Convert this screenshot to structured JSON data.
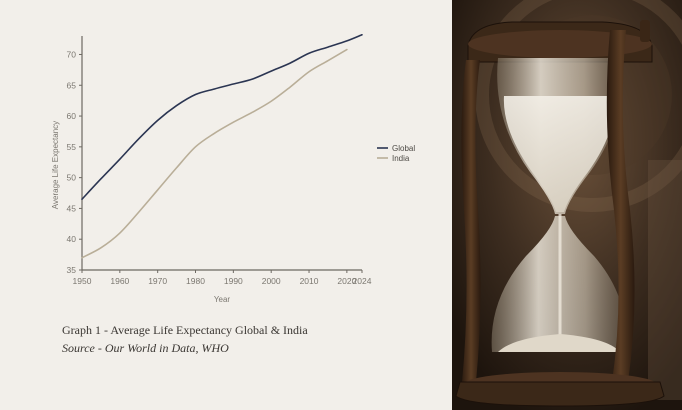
{
  "chart_data": {
    "type": "line",
    "xlabel": "Year",
    "ylabel": "Average Life Expectancy",
    "xlim": [
      1950,
      2024
    ],
    "ylim": [
      35,
      73
    ],
    "x_ticks": [
      "1950",
      "1960",
      "1970",
      "1980",
      "1990",
      "2000",
      "2010",
      "2020",
      "2024"
    ],
    "y_ticks": [
      "35",
      "40",
      "45",
      "50",
      "55",
      "60",
      "65",
      "70"
    ],
    "legend_placement": "right",
    "grid": false,
    "series": [
      {
        "name": "Global",
        "color": "#2b3552",
        "x": [
          1950,
          1955,
          1960,
          1965,
          1970,
          1975,
          1980,
          1985,
          1990,
          1995,
          2000,
          2005,
          2010,
          2015,
          2020,
          2024
        ],
        "y": [
          46.5,
          49.8,
          53.0,
          56.3,
          59.3,
          61.7,
          63.5,
          64.4,
          65.2,
          66.0,
          67.3,
          68.6,
          70.2,
          71.2,
          72.2,
          73.2
        ]
      },
      {
        "name": "India",
        "color": "#b9ae98",
        "x": [
          1950,
          1955,
          1960,
          1965,
          1970,
          1975,
          1980,
          1985,
          1990,
          1995,
          2000,
          2005,
          2010,
          2015,
          2020
        ],
        "y": [
          37.0,
          38.6,
          41.0,
          44.4,
          48.0,
          51.6,
          55.0,
          57.2,
          59.0,
          60.6,
          62.4,
          64.7,
          67.2,
          69.0,
          70.8
        ]
      }
    ]
  },
  "caption": {
    "title": "Graph 1 - Average Life Expectancy Global & India",
    "source": "Source - Our World in Data, WHO"
  },
  "photo": {
    "subject": "hourglass",
    "frame_color": "#4a3320",
    "glass_color": "#e8e2d6",
    "background_color": "#3a2b1f"
  }
}
